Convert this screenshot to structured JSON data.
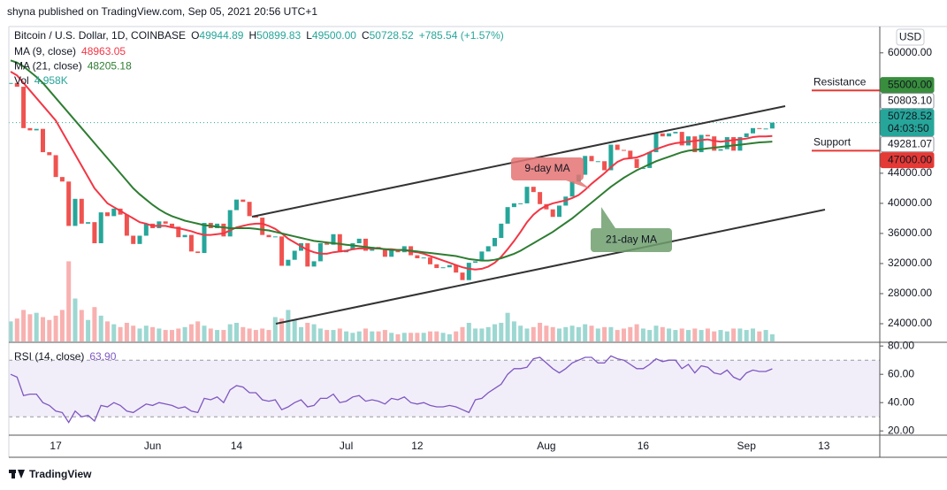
{
  "header": {
    "published": "shyna published on TradingView.com, Sep 05, 2021 20:56 UTC+1",
    "currency": "USD",
    "footer": "TradingView"
  },
  "chart_data": [
    {
      "type": "candlestick",
      "categories": [
        null,
        null,
        null,
        null,
        null,
        null,
        null,
        "17",
        null,
        null,
        null,
        null,
        null,
        null,
        null,
        null,
        null,
        null,
        null,
        null,
        null,
        null,
        "Jun",
        null,
        null,
        null,
        null,
        null,
        null,
        null,
        null,
        null,
        null,
        null,
        null,
        "14",
        null,
        null,
        null,
        null,
        null,
        null,
        null,
        null,
        null,
        null,
        null,
        null,
        null,
        null,
        null,
        null,
        "Jul",
        null,
        null,
        null,
        null,
        null,
        null,
        null,
        null,
        null,
        null,
        "12",
        null,
        null,
        null,
        null,
        null,
        null,
        null,
        null,
        null,
        null,
        null,
        null,
        null,
        null,
        null,
        null,
        null,
        null,
        null,
        "Aug",
        null,
        null,
        null,
        null,
        null,
        null,
        null,
        null,
        null,
        null,
        null,
        null,
        null,
        null,
        "16",
        null,
        null,
        null,
        null,
        null,
        null,
        null,
        null,
        null,
        null,
        null,
        null,
        null,
        null,
        null,
        "Sep",
        null,
        null,
        null,
        null,
        null,
        null,
        null,
        null,
        null,
        null,
        null,
        "13",
        null,
        null,
        null,
        null,
        null,
        null,
        null,
        null
      ],
      "ohlc": [
        {
          "key": "O",
          "text": "49944.89"
        },
        {
          "key": "H",
          "text": "50899.83"
        },
        {
          "key": "L",
          "text": "49500.00"
        },
        {
          "key": "C",
          "text": "50728.52"
        }
      ],
      "change": "+785.54 (+1.57%)",
      "series": [
        {
          "name": "Bitcoin / U.S. Dollar, 1D, COINBASE",
          "type": "candlestick",
          "up_color": "#26a69a",
          "down_color": "#ef5350",
          "countdown": "04:03:50",
          "values": [
            56000,
            55500,
            50000,
            49700,
            49900,
            46800,
            46400,
            43500,
            42900,
            37000,
            40600,
            37300,
            37500,
            34700,
            38800,
            38300,
            39300,
            38500,
            35700,
            34600,
            35700,
            37300,
            36700,
            37600,
            37300,
            36900,
            35500,
            35800,
            33600,
            33400,
            37400,
            36700,
            37300,
            35600,
            39100,
            40500,
            40200,
            38300,
            38100,
            35800,
            35500,
            35600,
            31700,
            32500,
            33700,
            34700,
            31600,
            32300,
            34700,
            34500,
            35900,
            33500,
            33800,
            34700,
            35300,
            33700,
            34200,
            33900,
            32900,
            33800,
            33500,
            34300,
            33100,
            32700,
            32800,
            31900,
            31400,
            31500,
            31800,
            30800,
            29800,
            32100,
            32300,
            33600,
            34300,
            35400,
            37300,
            39500,
            40000,
            40000,
            42200,
            41500,
            39900,
            39200,
            38200,
            39700,
            40900,
            42900,
            43800,
            46300,
            45600,
            45600,
            44400,
            47800,
            47100,
            47000,
            45900,
            44700,
            44700,
            46800,
            49300,
            48900,
            49300,
            49500,
            47700,
            48900,
            46800,
            49100,
            48900,
            47000,
            47200,
            48800,
            47000,
            48800,
            49300,
            50000,
            49900,
            49944.89,
            50728.52,
            null,
            null,
            null,
            null,
            null,
            null,
            null,
            null,
            null,
            null,
            null,
            null,
            null,
            null,
            null,
            null
          ]
        },
        {
          "name": "MA (9, close)",
          "type": "line",
          "color": "#f23645",
          "values": [
            57500,
            57000,
            56000,
            55000,
            54000,
            53000,
            52000,
            51000,
            49500,
            48000,
            46500,
            45000,
            43500,
            42000,
            41000,
            40000,
            39500,
            39000,
            38500,
            38000,
            37500,
            37300,
            37000,
            37000,
            37000,
            36800,
            36700,
            36500,
            36300,
            36000,
            35800,
            35800,
            35900,
            36000,
            36400,
            36800,
            37000,
            37200,
            37300,
            37300,
            37000,
            36600,
            36000,
            35300,
            34800,
            34300,
            33800,
            33500,
            33300,
            33300,
            33500,
            33600,
            33700,
            33900,
            34000,
            34000,
            34000,
            34000,
            33900,
            33900,
            33800,
            33800,
            33600,
            33500,
            33300,
            33000,
            32700,
            32400,
            32100,
            31800,
            31500,
            31300,
            31200,
            31300,
            31600,
            32100,
            32900,
            33900,
            35000,
            36200,
            37500,
            38500,
            39200,
            39700,
            40000,
            40200,
            40400,
            40700,
            41100,
            41800,
            42600,
            43300,
            44000,
            44800,
            45500,
            45900,
            46000,
            46100,
            46400,
            46800,
            47200,
            47500,
            47800,
            48000,
            48100,
            48200,
            48300,
            48400,
            48500,
            48300,
            48200,
            48300,
            48400,
            48500,
            48600,
            48800,
            48900,
            48900,
            48963.05,
            null,
            null,
            null,
            null,
            null,
            null,
            null,
            null,
            null,
            null,
            null,
            null,
            null,
            null,
            null,
            null
          ]
        },
        {
          "name": "MA (21, close)",
          "type": "line",
          "color": "#2e7d32",
          "values": [
            59000,
            58700,
            58200,
            57500,
            56800,
            56000,
            55000,
            54000,
            53000,
            52000,
            51000,
            50000,
            49000,
            48000,
            47000,
            46000,
            45000,
            44000,
            43000,
            42000,
            41200,
            40500,
            39800,
            39200,
            38700,
            38300,
            38000,
            37700,
            37500,
            37300,
            37100,
            37000,
            36900,
            36800,
            36700,
            36700,
            36700,
            36700,
            36600,
            36500,
            36400,
            36200,
            36000,
            35800,
            35600,
            35400,
            35200,
            35000,
            34900,
            34800,
            34700,
            34600,
            34500,
            34400,
            34300,
            34200,
            34100,
            34000,
            33900,
            33800,
            33800,
            33800,
            33700,
            33600,
            33500,
            33400,
            33300,
            33200,
            33100,
            33000,
            32800,
            32600,
            32500,
            32400,
            32400,
            32500,
            32700,
            33000,
            33300,
            33700,
            34200,
            34700,
            35200,
            35700,
            36200,
            36800,
            37400,
            38000,
            38700,
            39400,
            40100,
            40800,
            41500,
            42200,
            42800,
            43400,
            43900,
            44400,
            44800,
            45200,
            45600,
            45900,
            46200,
            46500,
            46800,
            47000,
            47100,
            47200,
            47300,
            47400,
            47500,
            47600,
            47700,
            47800,
            47900,
            48000,
            48100,
            48150,
            48205.18,
            null,
            null,
            null,
            null,
            null,
            null,
            null,
            null,
            null,
            null,
            null,
            null,
            null,
            null,
            null,
            null
          ]
        },
        {
          "name": "Vol",
          "type": "volume",
          "last_label": "4.958K",
          "ylim": [
            0,
            60000
          ],
          "values": [
            14000,
            16000,
            22000,
            19000,
            20000,
            17000,
            15000,
            18000,
            22000,
            56000,
            30000,
            22000,
            15000,
            24000,
            18000,
            14000,
            12000,
            10000,
            13000,
            11000,
            9000,
            11000,
            10000,
            9000,
            8000,
            8000,
            9000,
            10000,
            12000,
            14000,
            11000,
            9000,
            8000,
            8000,
            12000,
            13000,
            10000,
            9000,
            8000,
            9000,
            8000,
            17000,
            16000,
            22000,
            15000,
            10000,
            13000,
            12000,
            9000,
            8000,
            8000,
            9000,
            7000,
            6000,
            7000,
            9000,
            7000,
            7000,
            8000,
            6000,
            5000,
            6000,
            6000,
            6000,
            6000,
            7000,
            7000,
            6000,
            5000,
            7000,
            10000,
            13000,
            9000,
            9000,
            10000,
            12000,
            13000,
            20000,
            14000,
            11000,
            9000,
            10000,
            13000,
            11000,
            10000,
            9000,
            10000,
            11000,
            10000,
            12000,
            11000,
            9000,
            10000,
            10000,
            8000,
            9000,
            10000,
            12000,
            9000,
            8000,
            11000,
            10000,
            9000,
            8000,
            9000,
            8000,
            9000,
            8000,
            9000,
            7000,
            8000,
            7000,
            9000,
            9000,
            8000,
            9000,
            7000,
            8000,
            4958,
            null,
            null,
            null,
            null,
            null,
            null,
            null,
            null,
            null,
            null,
            null,
            null,
            null,
            null,
            null,
            null
          ]
        }
      ],
      "ylim": [
        21650,
        63500
      ],
      "yticks": [
        {
          "value": 60000,
          "label": "60000.00"
        },
        {
          "value": 56000,
          "label": "56000.00"
        },
        {
          "value": 52000,
          "label": "52000.00"
        },
        {
          "value": 48000,
          "label": "48000.00"
        },
        {
          "value": 44000,
          "label": "44000.00"
        },
        {
          "value": 40000,
          "label": "40000.00"
        },
        {
          "value": 36000,
          "label": "36000.00"
        },
        {
          "value": 32000,
          "label": "32000.00"
        },
        {
          "value": 28000,
          "label": "28000.00"
        },
        {
          "value": 24000,
          "label": "24000.00"
        }
      ],
      "levels": [
        {
          "name": "Resistance",
          "value": 55000,
          "label": "55000.00",
          "text_color": "#c62828",
          "line_color": "#e53935",
          "badge_color": "#388e3c"
        },
        {
          "name": "Support",
          "value": 47000,
          "label": "47000.00",
          "text_color": "#388e3c",
          "line_color": "#e53935",
          "badge_color": "#e53935"
        }
      ],
      "markers": [
        {
          "value": 50803.1,
          "label": "50803.10"
        },
        {
          "value": 49281.07,
          "label": "49281.07"
        }
      ],
      "callouts": [
        {
          "text": "9-day MA",
          "color": "#e57373"
        },
        {
          "text": "21-day MA",
          "color": "#6f9f6f"
        }
      ]
    },
    {
      "type": "line",
      "series": [
        {
          "name": "RSI (14, close)",
          "color": "#7e57c2",
          "last_label": "63.90",
          "values": [
            60,
            58,
            45,
            46,
            46,
            40,
            38,
            34,
            33,
            26,
            34,
            30,
            31,
            27,
            38,
            37,
            40,
            38,
            34,
            33,
            36,
            39,
            38,
            40,
            39,
            38,
            36,
            37,
            34,
            33,
            43,
            42,
            44,
            40,
            49,
            52,
            51,
            47,
            47,
            42,
            41,
            42,
            35,
            37,
            40,
            42,
            37,
            38,
            43,
            43,
            46,
            40,
            41,
            44,
            45,
            41,
            42,
            41,
            39,
            43,
            42,
            44,
            40,
            39,
            40,
            38,
            37,
            37,
            38,
            37,
            35,
            33,
            42,
            43,
            47,
            50,
            53,
            60,
            64,
            64,
            65,
            71,
            72,
            68,
            64,
            61,
            64,
            68,
            70,
            72,
            72,
            68,
            68,
            73,
            71,
            70,
            67,
            64,
            64,
            67,
            71,
            69,
            70,
            70,
            64,
            67,
            61,
            66,
            65,
            61,
            60,
            63,
            58,
            56,
            61,
            63,
            62,
            62,
            63.9,
            null,
            null,
            null,
            null,
            null,
            null,
            null,
            null,
            null,
            null,
            null,
            null,
            null,
            null,
            null,
            null
          ]
        }
      ],
      "ylim": [
        17,
        82
      ],
      "yticks": [
        {
          "value": 80,
          "label": "80.00"
        },
        {
          "value": 60,
          "label": "60.00"
        },
        {
          "value": 40,
          "label": "40.00"
        },
        {
          "value": 20,
          "label": "20.00"
        }
      ],
      "band": [
        30,
        70
      ],
      "band_color": "#7e57c2"
    }
  ]
}
